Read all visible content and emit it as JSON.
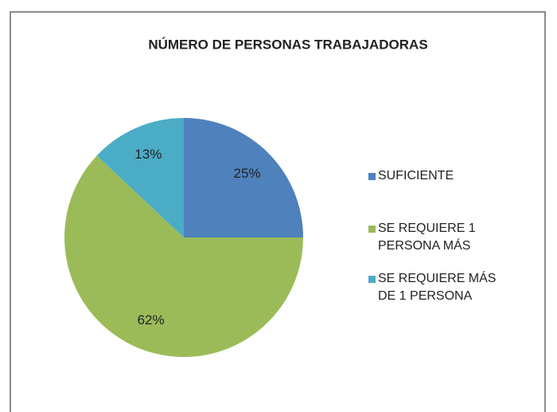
{
  "chart_data": {
    "type": "pie",
    "title": "NÚMERO DE PERSONAS TRABAJADORAS",
    "categories": [
      "SUFICIENTE",
      "SE REQUIERE 1 PERSONA MÁS",
      "SE REQUIERE MÁS DE 1 PERSONA"
    ],
    "values": [
      25,
      62,
      13
    ],
    "value_labels": [
      "25%",
      "62%",
      "13%"
    ],
    "colors": [
      "#4f81bd",
      "#9bbb59",
      "#4bacc6"
    ],
    "legend": "right"
  }
}
